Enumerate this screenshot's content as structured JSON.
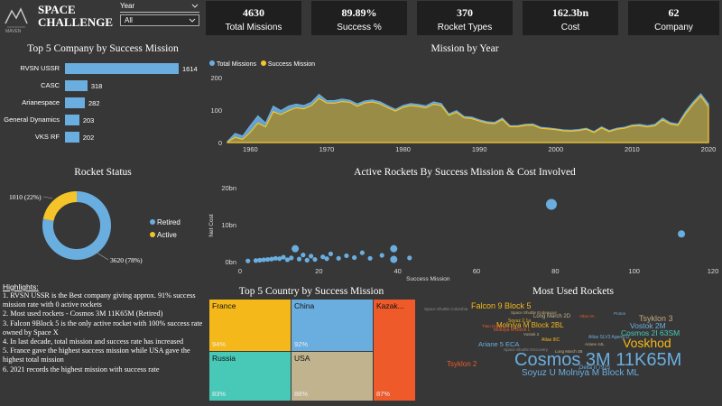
{
  "brand": {
    "title_line1": "SPACE",
    "title_line2": "CHALLENGE",
    "logo_text": "MAVEN"
  },
  "filter": {
    "label": "Year",
    "value": "All"
  },
  "kpis": [
    {
      "value": "4630",
      "label": "Total Missions"
    },
    {
      "value": "89.89%",
      "label": "Success %"
    },
    {
      "value": "370",
      "label": "Rocket Types"
    },
    {
      "value": "162.3bn",
      "label": "Cost"
    },
    {
      "value": "62",
      "label": "Company"
    }
  ],
  "chart_data": [
    {
      "type": "bar",
      "title": "Top 5 Company by Success Mission",
      "categories": [
        "RVSN USSR",
        "CASC",
        "Arianespace",
        "General Dynamics",
        "VKS RF"
      ],
      "values": [
        1614,
        318,
        282,
        203,
        202
      ],
      "color": "#6aaee0"
    },
    {
      "type": "area",
      "title": "Mission by Year",
      "series": [
        {
          "name": "Total Missions",
          "color": "#6aaee0",
          "values": [
            3,
            28,
            20,
            52,
            82,
            60,
            112,
            98,
            112,
            118,
            114,
            124,
            148,
            129,
            129,
            134,
            130,
            119,
            128,
            131,
            125,
            113,
            102,
            114,
            120,
            117,
            113,
            125,
            120,
            88,
            98,
            80,
            78,
            70,
            64,
            62,
            75,
            52,
            52,
            56,
            57,
            47,
            45,
            42,
            39,
            38,
            40,
            44,
            34,
            48,
            37,
            44,
            47,
            54,
            56,
            52,
            56,
            75,
            61,
            57,
            95,
            125,
            150,
            119
          ]
        },
        {
          "name": "Success Mission",
          "color": "#f5c428",
          "values": [
            1,
            16,
            10,
            32,
            60,
            48,
            95,
            86,
            98,
            107,
            104,
            114,
            136,
            122,
            121,
            126,
            124,
            112,
            122,
            125,
            119,
            107,
            97,
            108,
            114,
            111,
            107,
            118,
            114,
            84,
            93,
            76,
            74,
            66,
            60,
            58,
            71,
            49,
            49,
            53,
            54,
            44,
            42,
            40,
            36,
            35,
            37,
            41,
            31,
            45,
            34,
            41,
            44,
            51,
            52,
            48,
            52,
            70,
            57,
            53,
            88,
            118,
            143,
            110
          ]
        }
      ],
      "x_start": 1957,
      "x_end": 2020,
      "x_ticks": [
        "1960",
        "1970",
        "1980",
        "1990",
        "2000",
        "2010",
        "2020"
      ],
      "y_ticks": [
        "200",
        "100",
        "0"
      ],
      "ylim": [
        0,
        200
      ]
    },
    {
      "type": "pie",
      "title": "Rocket Status",
      "slices": [
        {
          "name": "Retired",
          "value": 3620,
          "label": "3620 (78%)",
          "color": "#6aaee0"
        },
        {
          "name": "Active",
          "value": 1010,
          "label": "1010 (22%)",
          "color": "#f5c428"
        }
      ]
    },
    {
      "type": "scatter",
      "title": "Active Rockets By Success Mission & Cost Involved",
      "xlabel": "Success Mission",
      "ylabel": "Net Cost",
      "x_ticks": [
        "0",
        "20",
        "40",
        "60",
        "80",
        "100",
        "120"
      ],
      "y_ticks": [
        "20bn",
        "10bn",
        "0bn"
      ],
      "xlim": [
        0,
        120
      ],
      "ylim": [
        0,
        20
      ],
      "points": [
        [
          2,
          0.2,
          1
        ],
        [
          4,
          0.3,
          1
        ],
        [
          5,
          0.4,
          1
        ],
        [
          6,
          0.5,
          1
        ],
        [
          7,
          0.6,
          1
        ],
        [
          8,
          0.7,
          1
        ],
        [
          9,
          0.9,
          1
        ],
        [
          10,
          0.8,
          1
        ],
        [
          11,
          1.2,
          1
        ],
        [
          12,
          0.5,
          1
        ],
        [
          13,
          1.0,
          1
        ],
        [
          14,
          3.5,
          2
        ],
        [
          15,
          0.7,
          1
        ],
        [
          16,
          1.8,
          1
        ],
        [
          17,
          0.4,
          1
        ],
        [
          18,
          1.5,
          1
        ],
        [
          19,
          0.6,
          1
        ],
        [
          21,
          1.3,
          1
        ],
        [
          22,
          0.8,
          1
        ],
        [
          23,
          2.1,
          1
        ],
        [
          25,
          0.9,
          1
        ],
        [
          27,
          1.6,
          1
        ],
        [
          29,
          1.1,
          1
        ],
        [
          31,
          2.4,
          1
        ],
        [
          33,
          0.9,
          1
        ],
        [
          36,
          1.7,
          1
        ],
        [
          39,
          0.6,
          2
        ],
        [
          39,
          3.5,
          2
        ],
        [
          43,
          1.0,
          1
        ],
        [
          79,
          15.5,
          3
        ],
        [
          112,
          7.5,
          2
        ]
      ]
    },
    {
      "type": "heatmap",
      "title": "Top 5 Country by Success Mission",
      "cells": [
        {
          "name": "France",
          "pct": "94%",
          "color": "#f5b81a"
        },
        {
          "name": "China",
          "pct": "92%",
          "color": "#6aaee0"
        },
        {
          "name": "Kazak...",
          "pct": "87%",
          "color": "#ee5a2a"
        },
        {
          "name": "Russia",
          "pct": "83%",
          "color": "#48c9b8"
        },
        {
          "name": "USA",
          "pct": "88%",
          "color": "#c1b38e"
        }
      ]
    }
  ],
  "rocket_status": {
    "legend_retired": "Retired",
    "legend_active": "Active"
  },
  "highlights": {
    "title": "Highlights:",
    "items": [
      "1. RVSN USSR is the Best company giving approx. 91% success mission rate with 0 active rockets",
      "2. Most used rockets - Cosmos 3M 11K65M (Retired)",
      "3. Falcon 9Block 5 is the only active rocket with 100% success rate owned by Space X",
      "4. In last decade, total mission and success rate has increased",
      "5. France gave the highest success mission while USA gave the highest total mission",
      "6. 2021 records the highest mission with success rate"
    ]
  },
  "wordcloud": {
    "title": "Most Used Rockets",
    "words": [
      {
        "text": "Cosmos 3M 11K65M",
        "color": "#6aaee0"
      },
      {
        "text": "Voskhod",
        "color": "#f5b81a"
      },
      {
        "text": "Falcon 9 Block 5",
        "color": "#f5b81a"
      },
      {
        "text": "Tsyklon 3",
        "color": "#c1a97a"
      },
      {
        "text": "Tsyklon 2",
        "color": "#ee5a2a"
      },
      {
        "text": "Molniya M Block 2BL",
        "color": "#f5b81a"
      },
      {
        "text": "Soyuz U Molniya M Block ML",
        "color": "#6aaee0"
      },
      {
        "text": "Vostok 2M",
        "color": "#6aaee0"
      },
      {
        "text": "Cosmos 2I 63SM",
        "color": "#48c9b8"
      },
      {
        "text": "Ariane 5 ECA",
        "color": "#6aaee0"
      },
      {
        "text": "Long March 2D",
        "color": "#c1b38e"
      },
      {
        "text": "Soyuz 2.1a",
        "color": "#f5b81a"
      },
      {
        "text": "Delta II 7925",
        "color": "#6aaee0"
      },
      {
        "text": "Atlas SLV3 Agena D",
        "color": "#6aaee0"
      },
      {
        "text": "Molniya M Block L",
        "color": "#ee5a2a"
      },
      {
        "text": "Space Shuttle Endeavour",
        "color": "#c1a97a"
      },
      {
        "text": "Atlas IIA",
        "color": "#ee5a2a"
      },
      {
        "text": "Vostok 2",
        "color": "#c1b38e"
      },
      {
        "text": "Space Shuttle Discovery",
        "color": "#8a8a8a"
      },
      {
        "text": "Titan III 23 C",
        "color": "#ee5a2a"
      },
      {
        "text": "Atlas IIIC",
        "color": "#f5b81a"
      },
      {
        "text": "Proton",
        "color": "#6aaee0"
      },
      {
        "text": "Space Shuttle Columbia",
        "color": "#8a8a8a"
      },
      {
        "text": "Long March 3B",
        "color": "#c1b38e"
      },
      {
        "text": "Ariane 44L",
        "color": "#c1b38e"
      }
    ]
  }
}
